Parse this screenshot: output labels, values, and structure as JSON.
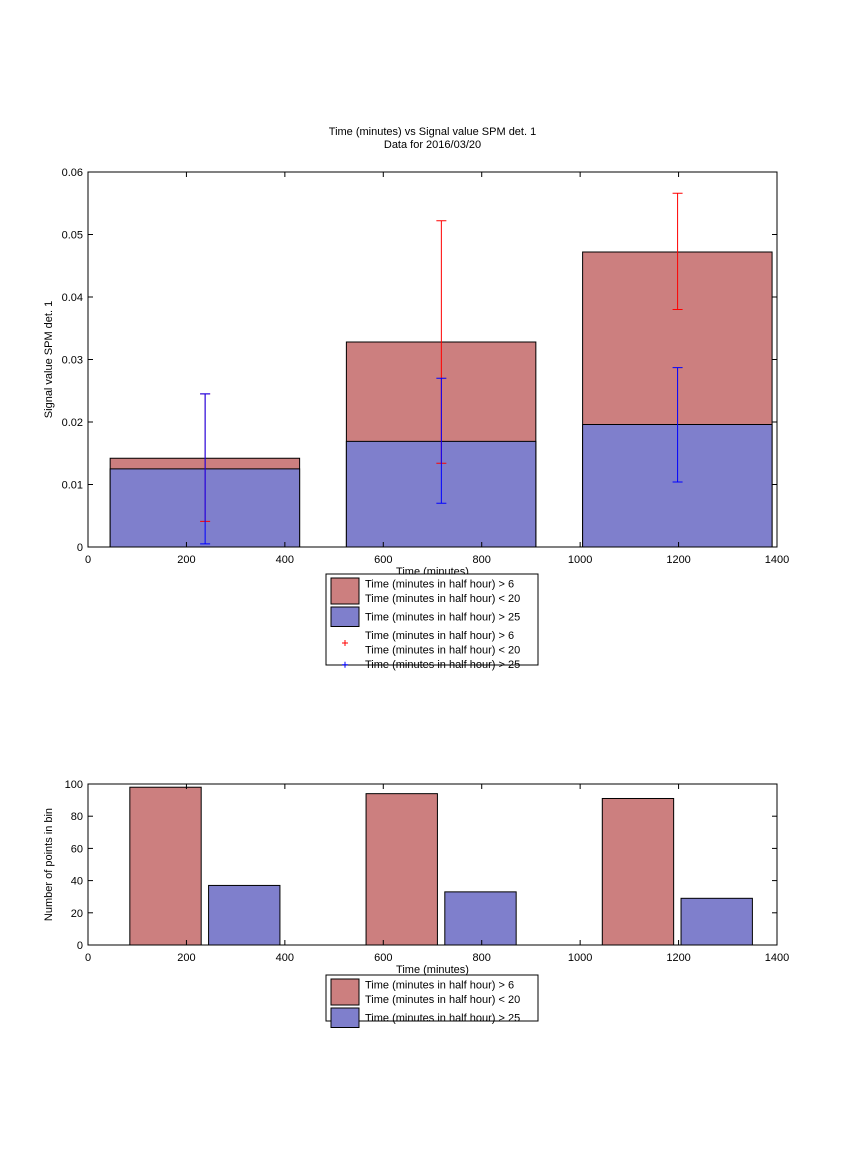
{
  "chart_data": [
    {
      "type": "bar",
      "title": "Time (minutes) vs Signal value SPM det. 1",
      "subtitle": "Data for 2016/03/20",
      "xlabel": "Time (minutes)",
      "ylabel": "Signal value SPM det. 1",
      "xlim": [
        0,
        1400
      ],
      "ylim": [
        0,
        0.06
      ],
      "xticks": [
        "0",
        "200",
        "400",
        "600",
        "800",
        "1000",
        "1200",
        "1400"
      ],
      "yticks": [
        "0",
        "0.01",
        "0.02",
        "0.03",
        "0.04",
        "0.05",
        "0.06"
      ],
      "grid": false,
      "legend_position": "bottom",
      "series": [
        {
          "name": "Time (minutes in half hour) > 6\nTime (minutes in half hour) < 20",
          "color": "#cc7f7f",
          "bars": [
            {
              "x_start": 45,
              "x_end": 430,
              "value": 0.0142
            },
            {
              "x_start": 525,
              "x_end": 910,
              "value": 0.0328
            },
            {
              "x_start": 1005,
              "x_end": 1390,
              "value": 0.0472
            }
          ],
          "errorbars": [
            {
              "x": 238,
              "low": 0.0041,
              "high": 0.0245
            },
            {
              "x": 718,
              "low": 0.0134,
              "high": 0.0522
            },
            {
              "x": 1198,
              "low": 0.038,
              "high": 0.0566
            }
          ],
          "marker_color": "#ff0000"
        },
        {
          "name": "Time (minutes in half hour) > 25",
          "color": "#7f7fcc",
          "bars": [
            {
              "x_start": 45,
              "x_end": 430,
              "value": 0.0125
            },
            {
              "x_start": 525,
              "x_end": 910,
              "value": 0.0169
            },
            {
              "x_start": 1005,
              "x_end": 1390,
              "value": 0.0196
            }
          ],
          "errorbars": [
            {
              "x": 238,
              "low": 0.0005,
              "high": 0.0245
            },
            {
              "x": 718,
              "low": 0.007,
              "high": 0.027
            },
            {
              "x": 1198,
              "low": 0.0104,
              "high": 0.0287
            }
          ],
          "marker_color": "#0000ff"
        }
      ],
      "legend": [
        {
          "kind": "patch",
          "color": "#cc7f7f",
          "lines": [
            "Time (minutes in half hour) > 6",
            "Time (minutes in half hour) < 20"
          ]
        },
        {
          "kind": "patch",
          "color": "#7f7fcc",
          "lines": [
            "Time (minutes in half hour) > 25"
          ]
        },
        {
          "kind": "marker",
          "color": "#ff0000",
          "lines": [
            "Time (minutes in half hour) > 6",
            "Time (minutes in half hour) < 20"
          ]
        },
        {
          "kind": "marker",
          "color": "#0000ff",
          "lines": [
            "Time (minutes in half hour) > 25"
          ]
        }
      ]
    },
    {
      "type": "bar",
      "title": "",
      "xlabel": "Time (minutes)",
      "ylabel": "Number of points in bin",
      "xlim": [
        0,
        1400
      ],
      "ylim": [
        0,
        100
      ],
      "xticks": [
        "0",
        "200",
        "400",
        "600",
        "800",
        "1000",
        "1200",
        "1400"
      ],
      "yticks": [
        "0",
        "20",
        "40",
        "60",
        "80",
        "100"
      ],
      "grid": false,
      "legend_position": "bottom",
      "series": [
        {
          "name": "Time (minutes in half hour) > 6\nTime (minutes in half hour) < 20",
          "color": "#cc7f7f",
          "bars": [
            {
              "x_start": 85,
              "x_end": 230,
              "value": 98
            },
            {
              "x_start": 565,
              "x_end": 710,
              "value": 94
            },
            {
              "x_start": 1045,
              "x_end": 1190,
              "value": 91
            }
          ]
        },
        {
          "name": "Time (minutes in half hour) > 25",
          "color": "#7f7fcc",
          "bars": [
            {
              "x_start": 245,
              "x_end": 390,
              "value": 37
            },
            {
              "x_start": 725,
              "x_end": 870,
              "value": 33
            },
            {
              "x_start": 1205,
              "x_end": 1350,
              "value": 29
            }
          ]
        }
      ],
      "legend": [
        {
          "kind": "patch",
          "color": "#cc7f7f",
          "lines": [
            "Time (minutes in half hour) > 6",
            "Time (minutes in half hour) < 20"
          ]
        },
        {
          "kind": "patch",
          "color": "#7f7fcc",
          "lines": [
            "Time (minutes in half hour) > 25"
          ]
        }
      ]
    }
  ]
}
